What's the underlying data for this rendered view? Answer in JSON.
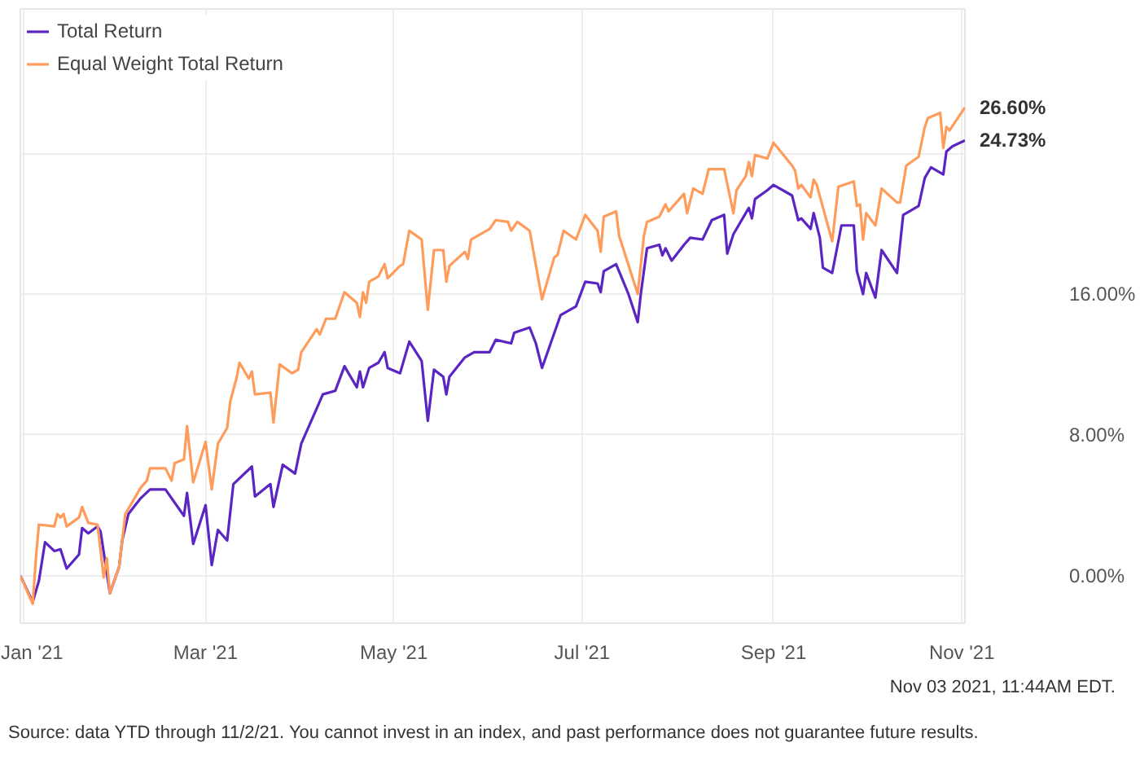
{
  "chart_data": {
    "type": "line",
    "xlim": [
      "2020-12-31",
      "2021-11-02"
    ],
    "ylim": [
      -2.7,
      32.2
    ],
    "xticks": [
      {
        "value": "2021-01-01",
        "label": "Jan '21"
      },
      {
        "value": "2021-03-01",
        "label": "Mar '21"
      },
      {
        "value": "2021-05-01",
        "label": "May '21"
      },
      {
        "value": "2021-07-01",
        "label": "Jul '21"
      },
      {
        "value": "2021-09-01",
        "label": "Sep '21"
      },
      {
        "value": "2021-11-01",
        "label": "Nov '21"
      }
    ],
    "yticks": [
      {
        "value": 0,
        "label": "0.00%"
      },
      {
        "value": 8,
        "label": "8.00%"
      },
      {
        "value": 16,
        "label": "16.00%"
      },
      {
        "value": 24,
        "label": null
      }
    ],
    "grid": true,
    "legend": "top left",
    "line_style": "solid",
    "series": [
      {
        "name": "Total Return",
        "color": "#5b25c4",
        "x": [
          "2020-12-31",
          "2021-01-04",
          "2021-01-06",
          "2021-01-08",
          "2021-01-11",
          "2021-01-13",
          "2021-01-15",
          "2021-01-19",
          "2021-01-20",
          "2021-01-22",
          "2021-01-25",
          "2021-01-26",
          "2021-01-29",
          "2021-02-01",
          "2021-02-02",
          "2021-02-04",
          "2021-02-08",
          "2021-02-11",
          "2021-02-16",
          "2021-02-22",
          "2021-02-23",
          "2021-02-25",
          "2021-03-01",
          "2021-03-03",
          "2021-03-05",
          "2021-03-08",
          "2021-03-10",
          "2021-03-16",
          "2021-03-17",
          "2021-03-22",
          "2021-03-23",
          "2021-03-26",
          "2021-03-30",
          "2021-04-01",
          "2021-04-05",
          "2021-04-08",
          "2021-04-12",
          "2021-04-15",
          "2021-04-19",
          "2021-04-20",
          "2021-04-21",
          "2021-04-23",
          "2021-04-26",
          "2021-04-28",
          "2021-04-29",
          "2021-05-03",
          "2021-05-06",
          "2021-05-10",
          "2021-05-12",
          "2021-05-14",
          "2021-05-17",
          "2021-05-18",
          "2021-05-19",
          "2021-05-24",
          "2021-05-27",
          "2021-06-01",
          "2021-06-03",
          "2021-06-08",
          "2021-06-09",
          "2021-06-14",
          "2021-06-16",
          "2021-06-18",
          "2021-06-22",
          "2021-06-24",
          "2021-06-29",
          "2021-07-02",
          "2021-07-06",
          "2021-07-07",
          "2021-07-08",
          "2021-07-12",
          "2021-07-16",
          "2021-07-19",
          "2021-07-20",
          "2021-07-22",
          "2021-07-26",
          "2021-07-27",
          "2021-07-28",
          "2021-07-30",
          "2021-08-03",
          "2021-08-05",
          "2021-08-09",
          "2021-08-12",
          "2021-08-16",
          "2021-08-17",
          "2021-08-19",
          "2021-08-24",
          "2021-08-25",
          "2021-08-26",
          "2021-08-30",
          "2021-09-01",
          "2021-09-07",
          "2021-09-09",
          "2021-09-10",
          "2021-09-13",
          "2021-09-14",
          "2021-09-16",
          "2021-09-17",
          "2021-09-20",
          "2021-09-23",
          "2021-09-27",
          "2021-09-28",
          "2021-09-30",
          "2021-10-01",
          "2021-10-04",
          "2021-10-06",
          "2021-10-11",
          "2021-10-13",
          "2021-10-18",
          "2021-10-20",
          "2021-10-22",
          "2021-10-26",
          "2021-10-27",
          "2021-10-29",
          "2021-11-02"
        ],
        "values": [
          0.0,
          -1.5,
          -0.3,
          1.9,
          1.4,
          1.5,
          0.4,
          1.2,
          2.7,
          2.4,
          2.8,
          2.5,
          -1.0,
          0.5,
          2.0,
          3.5,
          4.4,
          4.9,
          4.9,
          3.4,
          4.7,
          1.8,
          4.0,
          0.6,
          2.6,
          2.0,
          5.2,
          6.2,
          4.5,
          5.2,
          3.9,
          6.3,
          5.8,
          7.5,
          9.1,
          10.3,
          10.5,
          11.9,
          10.7,
          11.6,
          10.7,
          11.8,
          12.1,
          12.7,
          11.8,
          11.5,
          13.3,
          12.2,
          8.8,
          11.7,
          11.3,
          10.3,
          11.3,
          12.4,
          12.7,
          12.7,
          13.4,
          13.2,
          13.8,
          14.1,
          13.2,
          11.8,
          13.8,
          14.8,
          15.3,
          16.7,
          16.6,
          16.1,
          17.3,
          17.7,
          16.0,
          14.4,
          16.0,
          18.6,
          18.8,
          18.2,
          18.6,
          17.9,
          18.8,
          19.2,
          19.1,
          20.2,
          20.5,
          18.3,
          19.4,
          20.9,
          20.3,
          21.4,
          21.9,
          22.2,
          21.6,
          20.2,
          20.3,
          19.7,
          20.6,
          19.2,
          17.5,
          17.2,
          19.9,
          19.9,
          17.3,
          16.0,
          17.2,
          15.8,
          18.5,
          17.2,
          20.5,
          21.0,
          22.6,
          23.2,
          22.8,
          24.1,
          24.4,
          24.73
        ],
        "value_labels": [
          null,
          null,
          null,
          null,
          null,
          null,
          null,
          null,
          null,
          null,
          null,
          null,
          null,
          null,
          null,
          null,
          null,
          null,
          null,
          null,
          null,
          null,
          null,
          null,
          null,
          null,
          null,
          null,
          null,
          null,
          null,
          null,
          null,
          null,
          null,
          null,
          null,
          null,
          null,
          null,
          null,
          null,
          null,
          null,
          null,
          null,
          null,
          null,
          null,
          null,
          null,
          null,
          null,
          null,
          null,
          null,
          null,
          null,
          null,
          null,
          null,
          null,
          null,
          null,
          null,
          null,
          null,
          null,
          null,
          null,
          null,
          null,
          null,
          null,
          null,
          null,
          null,
          null,
          null,
          null,
          null,
          null,
          null,
          null,
          null,
          null,
          null,
          null,
          null,
          null,
          null,
          null,
          null,
          null,
          null,
          null,
          null,
          null,
          null,
          null,
          null,
          null,
          null,
          null,
          null,
          null,
          null,
          null,
          null,
          null,
          null,
          null,
          null,
          "24.73%"
        ]
      },
      {
        "name": "Equal Weight Total Return",
        "color": "#ff9c5b",
        "x": [
          "2020-12-31",
          "2021-01-04",
          "2021-01-05",
          "2021-01-06",
          "2021-01-11",
          "2021-01-12",
          "2021-01-13",
          "2021-01-14",
          "2021-01-15",
          "2021-01-19",
          "2021-01-20",
          "2021-01-22",
          "2021-01-25",
          "2021-01-27",
          "2021-01-28",
          "2021-01-29",
          "2021-02-01",
          "2021-02-02",
          "2021-02-03",
          "2021-02-08",
          "2021-02-10",
          "2021-02-11",
          "2021-02-16",
          "2021-02-18",
          "2021-02-19",
          "2021-02-22",
          "2021-02-23",
          "2021-02-25",
          "2021-03-01",
          "2021-03-03",
          "2021-03-05",
          "2021-03-08",
          "2021-03-09",
          "2021-03-11",
          "2021-03-12",
          "2021-03-15",
          "2021-03-16",
          "2021-03-17",
          "2021-03-22",
          "2021-03-23",
          "2021-03-25",
          "2021-03-29",
          "2021-03-31",
          "2021-04-01",
          "2021-04-06",
          "2021-04-07",
          "2021-04-09",
          "2021-04-12",
          "2021-04-15",
          "2021-04-19",
          "2021-04-20",
          "2021-04-21",
          "2021-04-22",
          "2021-04-23",
          "2021-04-26",
          "2021-04-28",
          "2021-04-29",
          "2021-05-03",
          "2021-05-04",
          "2021-05-06",
          "2021-05-10",
          "2021-05-12",
          "2021-05-14",
          "2021-05-17",
          "2021-05-18",
          "2021-05-19",
          "2021-05-24",
          "2021-05-25",
          "2021-05-26",
          "2021-06-01",
          "2021-06-03",
          "2021-06-07",
          "2021-06-08",
          "2021-06-10",
          "2021-06-14",
          "2021-06-18",
          "2021-06-22",
          "2021-06-23",
          "2021-06-25",
          "2021-06-29",
          "2021-07-02",
          "2021-07-06",
          "2021-07-07",
          "2021-07-08",
          "2021-07-12",
          "2021-07-13",
          "2021-07-19",
          "2021-07-21",
          "2021-07-22",
          "2021-07-26",
          "2021-07-28",
          "2021-07-29",
          "2021-08-03",
          "2021-08-04",
          "2021-08-06",
          "2021-08-09",
          "2021-08-11",
          "2021-08-12",
          "2021-08-16",
          "2021-08-19",
          "2021-08-20",
          "2021-08-23",
          "2021-08-24",
          "2021-08-25",
          "2021-08-26",
          "2021-08-30",
          "2021-09-01",
          "2021-09-07",
          "2021-09-08",
          "2021-09-09",
          "2021-09-10",
          "2021-09-13",
          "2021-09-14",
          "2021-09-15",
          "2021-09-20",
          "2021-09-22",
          "2021-09-27",
          "2021-09-28",
          "2021-09-29",
          "2021-09-30",
          "2021-10-01",
          "2021-10-04",
          "2021-10-05",
          "2021-10-06",
          "2021-10-11",
          "2021-10-12",
          "2021-10-14",
          "2021-10-18",
          "2021-10-20",
          "2021-10-21",
          "2021-10-25",
          "2021-10-26",
          "2021-10-27",
          "2021-10-28",
          "2021-11-02"
        ],
        "values": [
          0.0,
          -1.6,
          0.9,
          2.9,
          2.8,
          3.5,
          3.3,
          3.5,
          2.8,
          3.3,
          3.9,
          3.0,
          2.9,
          -0.1,
          1.0,
          -1.0,
          0.5,
          2.0,
          3.5,
          5.0,
          5.4,
          6.1,
          6.1,
          5.4,
          6.4,
          6.6,
          8.5,
          5.3,
          7.6,
          4.9,
          7.5,
          8.4,
          9.9,
          11.2,
          12.1,
          11.2,
          11.6,
          10.3,
          10.4,
          8.7,
          12.0,
          11.5,
          11.7,
          12.7,
          14.0,
          13.7,
          14.6,
          14.6,
          16.1,
          15.5,
          14.7,
          16.1,
          15.5,
          16.7,
          17.0,
          17.7,
          16.9,
          17.6,
          17.7,
          19.6,
          19.1,
          15.1,
          18.5,
          18.5,
          16.7,
          17.6,
          18.4,
          18.0,
          19.1,
          19.7,
          20.2,
          20.1,
          19.6,
          20.1,
          19.6,
          15.7,
          18.1,
          18.2,
          19.6,
          19.1,
          20.5,
          19.6,
          18.4,
          20.4,
          20.7,
          19.3,
          16.0,
          19.3,
          20.1,
          20.4,
          21.1,
          20.7,
          21.7,
          20.6,
          22.0,
          21.7,
          23.1,
          23.1,
          23.1,
          20.6,
          21.9,
          22.7,
          23.5,
          22.7,
          23.9,
          23.7,
          24.6,
          23.3,
          23.0,
          22.0,
          22.2,
          21.5,
          22.5,
          22.2,
          19.0,
          22.1,
          22.4,
          21.0,
          21.1,
          19.1,
          20.6,
          19.9,
          20.9,
          22.0,
          21.2,
          21.2,
          23.3,
          23.8,
          25.5,
          26.0,
          26.3,
          24.3,
          25.5,
          25.3,
          26.6
        ],
        "value_labels": [
          null,
          null,
          null,
          null,
          null,
          null,
          null,
          null,
          null,
          null,
          null,
          null,
          null,
          null,
          null,
          null,
          null,
          null,
          null,
          null,
          null,
          null,
          null,
          null,
          null,
          null,
          null,
          null,
          null,
          null,
          null,
          null,
          null,
          null,
          null,
          null,
          null,
          null,
          null,
          null,
          null,
          null,
          null,
          null,
          null,
          null,
          null,
          null,
          null,
          null,
          null,
          null,
          null,
          null,
          null,
          null,
          null,
          null,
          null,
          null,
          null,
          null,
          null,
          null,
          null,
          null,
          null,
          null,
          null,
          null,
          null,
          null,
          null,
          null,
          null,
          null,
          null,
          null,
          null,
          null,
          null,
          null,
          null,
          null,
          null,
          null,
          null,
          null,
          null,
          null,
          null,
          null,
          null,
          null,
          null,
          null,
          null,
          null,
          null,
          null,
          null,
          null,
          null,
          null,
          null,
          null,
          null,
          null,
          null,
          null,
          null,
          null,
          null,
          null,
          null,
          null,
          null,
          null,
          null,
          null,
          null,
          null,
          null,
          null,
          null,
          null,
          null,
          null,
          null,
          null,
          null,
          null,
          null,
          null,
          "26.60%"
        ]
      }
    ],
    "annotations": [
      "Nov 03 2021, 11:44AM EDT.",
      "Source: data YTD through 11/2/21. You cannot invest in an index, and past performance does not guarantee future results."
    ]
  }
}
